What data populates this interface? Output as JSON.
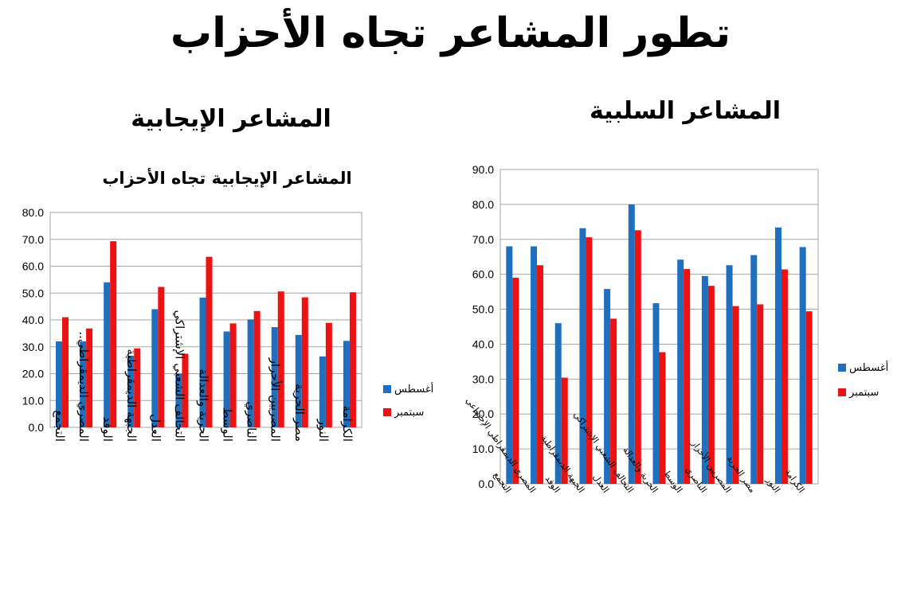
{
  "title": "تطور المشاعر تجاه الأحزاب",
  "negative_section_title": "المشاعر السلبية",
  "positive_section_title": "المشاعر الإيجابية",
  "colors": {
    "august": "#1f6fbf",
    "september": "#ee1111"
  },
  "chart_data": [
    {
      "type": "bar",
      "title": "المشاعر الإيجابية تجاه الأحزاب",
      "categories": [
        "التجمع",
        "المصري الديمقراطي..",
        "الوفد",
        "الجبهة الديمقراطية",
        "العدل",
        "التحالف الشعبي الإشتراكي",
        "الحرية والعدالة",
        "الوسط",
        "الناصري",
        "المصريين الأحرار",
        "مصر الحرية",
        "النور",
        "الكرامة"
      ],
      "series": [
        {
          "name": "أغسطس",
          "values": [
            32.0,
            32.0,
            54.0,
            26.7,
            44.0,
            20.0,
            48.3,
            35.7,
            40.2,
            37.3,
            34.4,
            26.4,
            32.2
          ]
        },
        {
          "name": "سبتمبر",
          "values": [
            41.0,
            36.8,
            69.3,
            29.4,
            52.3,
            27.4,
            63.5,
            38.7,
            43.3,
            50.6,
            48.4,
            38.9,
            50.3
          ]
        }
      ],
      "ylim": [
        0,
        80
      ],
      "ytick_labels": [
        "0.0",
        "10.0",
        "20.0",
        "30.0",
        "40.0",
        "50.0",
        "60.0",
        "70.0",
        "80.0"
      ],
      "legend": "right",
      "grid": true
    },
    {
      "type": "bar",
      "title": "",
      "categories": [
        "التجمع",
        "المصري الديمقراطي الإجتماعي",
        "الوفد",
        "الجبهة الديمقراطية",
        "العدل",
        "التحالف الشعبي الإشتراكي",
        "الحرية والعدالة",
        "الوسط",
        "الناصري",
        "المصريين الأحرار",
        "مصر الحرية",
        "النور",
        "الكرامة"
      ],
      "series": [
        {
          "name": "أغسطس",
          "values": [
            68.0,
            68.0,
            46.0,
            73.2,
            55.8,
            80.0,
            51.7,
            64.2,
            59.5,
            62.6,
            65.5,
            73.4,
            67.8
          ]
        },
        {
          "name": "سبتمبر",
          "values": [
            59.0,
            62.6,
            30.4,
            70.6,
            47.3,
            72.6,
            37.7,
            61.5,
            56.7,
            50.9,
            51.4,
            61.4,
            49.4
          ]
        }
      ],
      "ylim": [
        0,
        90
      ],
      "ytick_labels": [
        "0.0",
        "10.0",
        "20.0",
        "30.0",
        "40.0",
        "50.0",
        "60.0",
        "70.0",
        "80.0",
        "90.0"
      ],
      "legend": "right",
      "grid": true
    }
  ]
}
